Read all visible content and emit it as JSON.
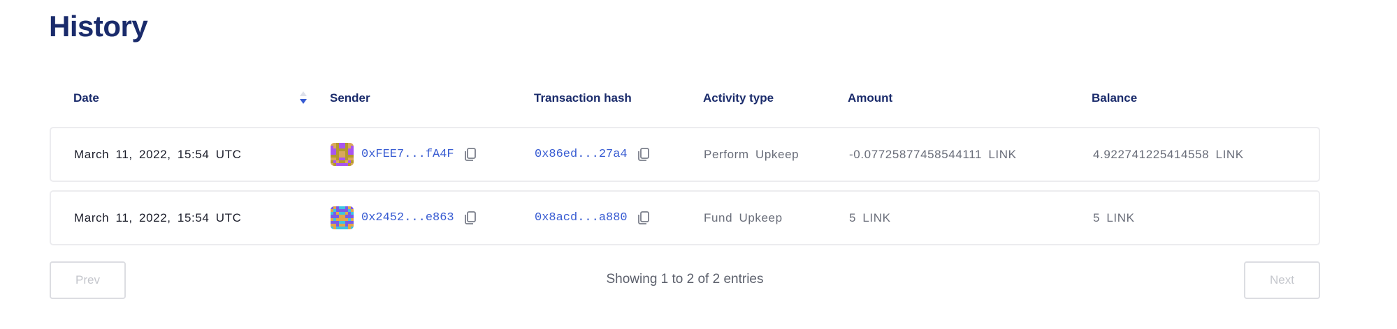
{
  "page": {
    "title": "History"
  },
  "colors": {
    "title": "#1a2b6b",
    "link": "#375bd2",
    "sort_active": "#375bd2"
  },
  "table": {
    "columns": [
      "Date",
      "Sender",
      "Transaction hash",
      "Activity type",
      "Amount",
      "Balance"
    ],
    "sort": {
      "column": "Date",
      "direction": "descending"
    },
    "rows": [
      {
        "date": "March 11, 2022, 15:54 UTC",
        "sender": "0xFEE7...fA4F",
        "tx_hash": "0x86ed...27a4",
        "activity": "Perform Upkeep",
        "amount": "-0.07725877458544111 LINK",
        "balance": "4.922741225414558 LINK",
        "avatar_colors": [
          "#d9a85a",
          "#a855f0",
          "#b59a2a"
        ]
      },
      {
        "date": "March 11, 2022, 15:54 UTC",
        "sender": "0x2452...e863",
        "tx_hash": "0x8acd...a880",
        "activity": "Fund Upkeep",
        "amount": "5 LINK",
        "balance": "5 LINK",
        "avatar_colors": [
          "#e2a64a",
          "#7a5ae8",
          "#3ec3e0"
        ]
      }
    ]
  },
  "pagination": {
    "prev": "Prev",
    "next": "Next",
    "summary": "Showing 1 to 2 of 2 entries"
  },
  "icons": {
    "copy": "copy-icon",
    "sort": "sort-caret-icon"
  }
}
